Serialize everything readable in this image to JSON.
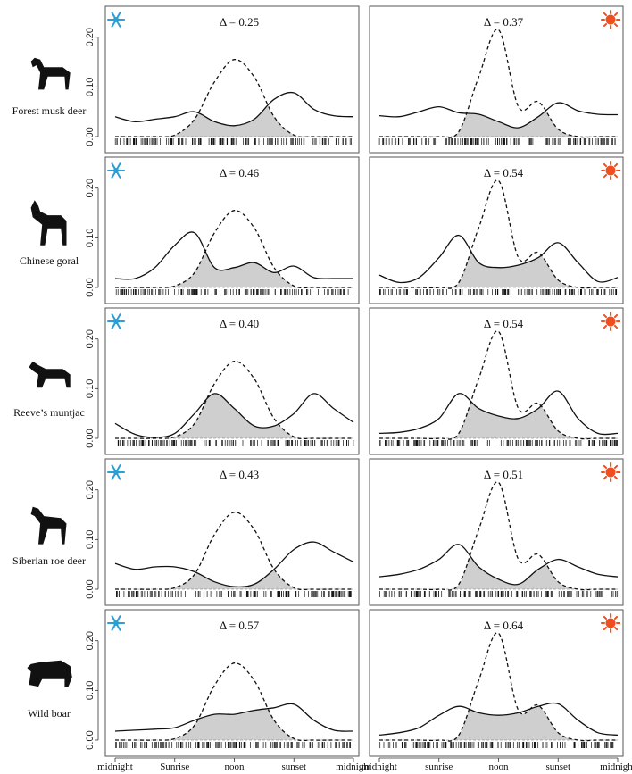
{
  "colors": {
    "winter_icon": "#2a9fd6",
    "summer_icon": "#f04e1f",
    "overlap_fill": "#cfcfcf"
  },
  "y_axis_ticks": [
    "0.00",
    "0.10",
    "0.20"
  ],
  "x_axis_labels": [
    "midnight",
    "Sunrise",
    "noon",
    "sunset",
    "midnight",
    "midnight",
    "sunrise",
    "noon",
    "sunset",
    "midnight"
  ],
  "columns": [
    {
      "season": "winter",
      "icon": "snowflake-icon"
    },
    {
      "season": "summer",
      "icon": "sun-icon"
    }
  ],
  "rows": [
    {
      "species": "Forest musk deer",
      "deltas": [
        "Δ = 0.25",
        "Δ = 0.37"
      ]
    },
    {
      "species": "Chinese goral",
      "deltas": [
        "Δ = 0.46",
        "Δ = 0.54"
      ]
    },
    {
      "species": "Reeve’s muntjac",
      "deltas": [
        "Δ = 0.40",
        "Δ = 0.54"
      ]
    },
    {
      "species": "Siberian roe deer",
      "deltas": [
        "Δ = 0.43",
        "Δ = 0.51"
      ]
    },
    {
      "species": "Wild boar",
      "deltas": [
        "Δ = 0.57",
        "Δ = 0.64"
      ]
    }
  ],
  "chart_data": [
    {
      "type": "line",
      "panel": "Forest musk deer — winter",
      "annotation": "Δ = 0.25",
      "ylim": [
        0,
        0.23
      ],
      "x": [
        0,
        2,
        4,
        6,
        8,
        10,
        12,
        14,
        16,
        18,
        20,
        22,
        24
      ],
      "series": [
        {
          "values": [
            0.04,
            0.03,
            0.035,
            0.04,
            0.05,
            0.03,
            0.022,
            0.035,
            0.075,
            0.088,
            0.055,
            0.042,
            0.04
          ]
        },
        {
          "values": [
            0.0,
            0.0,
            0.0,
            0.003,
            0.035,
            0.11,
            0.155,
            0.12,
            0.04,
            0.003,
            0.0,
            0.0,
            0.0
          ],
          "style": "dashed"
        }
      ]
    },
    {
      "type": "line",
      "panel": "Forest musk deer — summer",
      "annotation": "Δ = 0.37",
      "ylim": [
        0,
        0.23
      ],
      "x": [
        0,
        2,
        4,
        6,
        8,
        10,
        12,
        14,
        16,
        18,
        20,
        22,
        24
      ],
      "series": [
        {
          "values": [
            0.042,
            0.04,
            0.05,
            0.06,
            0.048,
            0.045,
            0.03,
            0.018,
            0.04,
            0.068,
            0.052,
            0.045,
            0.044
          ]
        },
        {
          "values": [
            0.0,
            0.0,
            0.0,
            0.0,
            0.01,
            0.12,
            0.215,
            0.06,
            0.07,
            0.015,
            0.0,
            0.0,
            0.0
          ],
          "style": "dashed"
        }
      ]
    },
    {
      "type": "line",
      "panel": "Chinese goral — winter",
      "annotation": "Δ = 0.46",
      "ylim": [
        0,
        0.23
      ],
      "x": [
        0,
        2,
        4,
        6,
        8,
        10,
        12,
        14,
        16,
        18,
        20,
        22,
        24
      ],
      "series": [
        {
          "values": [
            0.018,
            0.018,
            0.04,
            0.085,
            0.11,
            0.04,
            0.04,
            0.05,
            0.03,
            0.043,
            0.02,
            0.018,
            0.018
          ]
        },
        {
          "values": [
            0.0,
            0.0,
            0.0,
            0.003,
            0.03,
            0.11,
            0.155,
            0.12,
            0.04,
            0.003,
            0.0,
            0.0,
            0.0
          ],
          "style": "dashed"
        }
      ]
    },
    {
      "type": "line",
      "panel": "Chinese goral — summer",
      "annotation": "Δ = 0.54",
      "ylim": [
        0,
        0.23
      ],
      "x": [
        0,
        2,
        4,
        6,
        8,
        10,
        12,
        14,
        16,
        18,
        20,
        22,
        24
      ],
      "series": [
        {
          "values": [
            0.025,
            0.01,
            0.02,
            0.06,
            0.105,
            0.05,
            0.04,
            0.045,
            0.06,
            0.09,
            0.05,
            0.012,
            0.02
          ]
        },
        {
          "values": [
            0.0,
            0.0,
            0.0,
            0.0,
            0.01,
            0.12,
            0.215,
            0.06,
            0.07,
            0.015,
            0.0,
            0.0,
            0.0
          ],
          "style": "dashed"
        }
      ]
    },
    {
      "type": "line",
      "panel": "Reeve’s muntjac — winter",
      "annotation": "Δ = 0.40",
      "ylim": [
        0,
        0.23
      ],
      "x": [
        0,
        2,
        4,
        6,
        8,
        10,
        12,
        14,
        16,
        18,
        20,
        22,
        24
      ],
      "series": [
        {
          "values": [
            0.03,
            0.008,
            0.002,
            0.01,
            0.05,
            0.09,
            0.06,
            0.025,
            0.025,
            0.05,
            0.09,
            0.06,
            0.032
          ]
        },
        {
          "values": [
            0.0,
            0.0,
            0.0,
            0.003,
            0.03,
            0.11,
            0.155,
            0.12,
            0.04,
            0.003,
            0.0,
            0.0,
            0.0
          ],
          "style": "dashed"
        }
      ]
    },
    {
      "type": "line",
      "panel": "Reeve’s muntjac — summer",
      "annotation": "Δ = 0.54",
      "ylim": [
        0,
        0.23
      ],
      "x": [
        0,
        2,
        4,
        6,
        8,
        10,
        12,
        14,
        16,
        18,
        20,
        22,
        24
      ],
      "series": [
        {
          "values": [
            0.01,
            0.012,
            0.02,
            0.04,
            0.09,
            0.06,
            0.045,
            0.04,
            0.06,
            0.095,
            0.04,
            0.01,
            0.01
          ]
        },
        {
          "values": [
            0.0,
            0.0,
            0.0,
            0.0,
            0.01,
            0.12,
            0.215,
            0.06,
            0.07,
            0.015,
            0.0,
            0.0,
            0.0
          ],
          "style": "dashed"
        }
      ]
    },
    {
      "type": "line",
      "panel": "Siberian roe deer — winter",
      "annotation": "Δ = 0.43",
      "ylim": [
        0,
        0.23
      ],
      "x": [
        0,
        2,
        4,
        6,
        8,
        10,
        12,
        14,
        16,
        18,
        20,
        22,
        24
      ],
      "series": [
        {
          "values": [
            0.052,
            0.04,
            0.045,
            0.045,
            0.035,
            0.015,
            0.005,
            0.01,
            0.04,
            0.08,
            0.095,
            0.075,
            0.055
          ]
        },
        {
          "values": [
            0.0,
            0.0,
            0.0,
            0.003,
            0.03,
            0.11,
            0.155,
            0.12,
            0.04,
            0.003,
            0.0,
            0.0,
            0.0
          ],
          "style": "dashed"
        }
      ]
    },
    {
      "type": "line",
      "panel": "Siberian roe deer — summer",
      "annotation": "Δ = 0.51",
      "ylim": [
        0,
        0.23
      ],
      "x": [
        0,
        2,
        4,
        6,
        8,
        10,
        12,
        14,
        16,
        18,
        20,
        22,
        24
      ],
      "series": [
        {
          "values": [
            0.025,
            0.03,
            0.04,
            0.06,
            0.09,
            0.045,
            0.02,
            0.01,
            0.04,
            0.06,
            0.045,
            0.03,
            0.025
          ]
        },
        {
          "values": [
            0.0,
            0.0,
            0.0,
            0.0,
            0.01,
            0.12,
            0.215,
            0.06,
            0.07,
            0.015,
            0.0,
            0.0,
            0.0
          ],
          "style": "dashed"
        }
      ]
    },
    {
      "type": "line",
      "panel": "Wild boar — winter",
      "annotation": "Δ = 0.57",
      "ylim": [
        0,
        0.23
      ],
      "x": [
        0,
        2,
        4,
        6,
        8,
        10,
        12,
        14,
        16,
        18,
        20,
        22,
        24
      ],
      "series": [
        {
          "values": [
            0.018,
            0.02,
            0.022,
            0.025,
            0.04,
            0.052,
            0.052,
            0.06,
            0.065,
            0.072,
            0.04,
            0.02,
            0.018
          ]
        },
        {
          "values": [
            0.0,
            0.0,
            0.0,
            0.003,
            0.03,
            0.11,
            0.155,
            0.12,
            0.04,
            0.003,
            0.0,
            0.0,
            0.0
          ],
          "style": "dashed"
        }
      ]
    },
    {
      "type": "line",
      "panel": "Wild boar — summer",
      "annotation": "Δ = 0.64",
      "ylim": [
        0,
        0.23
      ],
      "x": [
        0,
        2,
        4,
        6,
        8,
        10,
        12,
        14,
        16,
        18,
        20,
        22,
        24
      ],
      "series": [
        {
          "values": [
            0.01,
            0.015,
            0.025,
            0.05,
            0.068,
            0.055,
            0.05,
            0.055,
            0.068,
            0.073,
            0.04,
            0.015,
            0.01
          ]
        },
        {
          "values": [
            0.0,
            0.0,
            0.0,
            0.0,
            0.01,
            0.12,
            0.215,
            0.06,
            0.07,
            0.015,
            0.0,
            0.0,
            0.0
          ],
          "style": "dashed"
        }
      ]
    }
  ]
}
